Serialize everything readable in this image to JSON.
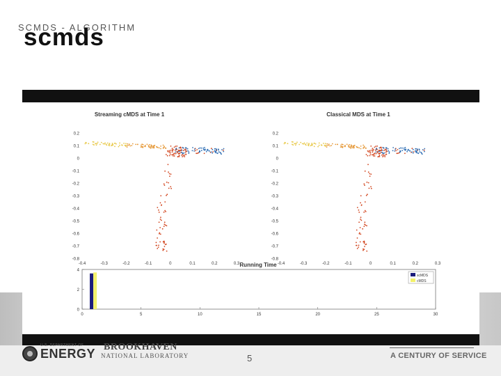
{
  "slide": {
    "header_small": "SCMDS - ALGORITHM",
    "title": "scmds",
    "page_number": "5"
  },
  "footer": {
    "doe_text": "ENERGY",
    "doe_small": "U.S. DEPARTMENT OF",
    "bnl_line1": "BROOKHAVEN",
    "bnl_line2": "NATIONAL LABORATORY",
    "tagline": "A CENTURY OF SERVICE"
  },
  "chart_data": [
    {
      "type": "scatter",
      "title": "Streaming cMDS at Time 1",
      "xlim": [
        -0.4,
        0.3
      ],
      "ylim": [
        -0.8,
        0.2
      ],
      "xticks": [
        "-0.4",
        "-0.3",
        "-0.2",
        "-0.1",
        "0",
        "0.1",
        "0.2",
        "0.3"
      ],
      "yticks": [
        "0.2",
        "0.1",
        "0",
        "-0.1",
        "-0.2",
        "-0.3",
        "-0.4",
        "-0.5",
        "-0.6",
        "-0.7",
        "-0.8"
      ]
    },
    {
      "type": "scatter",
      "title": "Classical MDS at Time 1",
      "xlim": [
        -0.4,
        0.3
      ],
      "ylim": [
        -0.8,
        0.2
      ],
      "xticks": [
        "-0.4",
        "-0.3",
        "-0.2",
        "-0.1",
        "0",
        "0.1",
        "0.2",
        "0.3"
      ],
      "yticks": [
        "0.2",
        "0.1",
        "0",
        "-0.1",
        "-0.2",
        "-0.3",
        "-0.4",
        "-0.5",
        "-0.6",
        "-0.7",
        "-0.8"
      ]
    },
    {
      "type": "bar",
      "title": "Running Time",
      "xlim": [
        0,
        30
      ],
      "ylim": [
        0,
        4
      ],
      "xticks": [
        "0",
        "5",
        "10",
        "15",
        "20",
        "25",
        "30"
      ],
      "yticks": [
        "4",
        "2",
        "0"
      ],
      "legend": [
        "scMDS",
        "cMDS"
      ],
      "series": [
        {
          "name": "scMDS",
          "x": [
            0.8
          ],
          "values": [
            3.6
          ],
          "color": "#1c1c7c"
        },
        {
          "name": "cMDS",
          "x": [
            1.1
          ],
          "values": [
            3.7
          ],
          "color": "#f3f16a"
        }
      ]
    }
  ],
  "colors": {
    "blue": "#2f6fb5",
    "red": "#d2451e",
    "orange": "#e69a3b",
    "yellow": "#e8c94a"
  }
}
